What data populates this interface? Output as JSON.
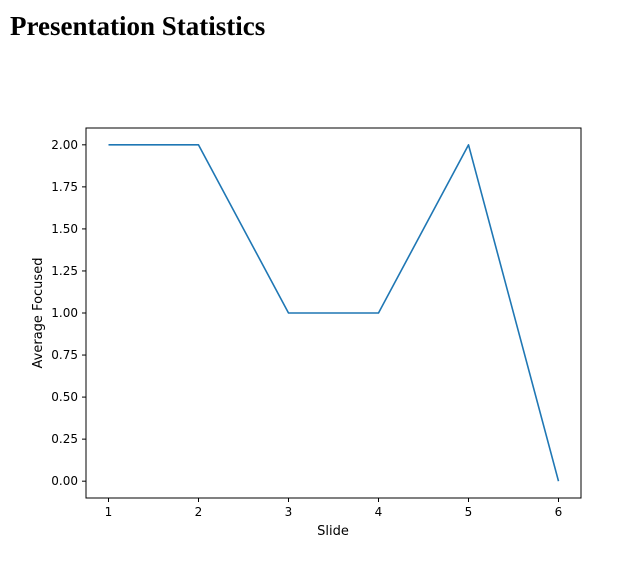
{
  "page": {
    "title": "Presentation Statistics"
  },
  "chart_data": {
    "type": "line",
    "title": "",
    "xlabel": "Slide",
    "ylabel": "Average Focused",
    "x": [
      1,
      2,
      3,
      4,
      5,
      6
    ],
    "series": [
      {
        "name": "Average Focused",
        "values": [
          2,
          2,
          1,
          1,
          2,
          0
        ]
      }
    ],
    "xlim": [
      0.75,
      6.25
    ],
    "ylim": [
      -0.1,
      2.1
    ],
    "xtick_values": [
      1,
      2,
      3,
      4,
      5,
      6
    ],
    "xtick_labels": [
      "1",
      "2",
      "3",
      "4",
      "5",
      "6"
    ],
    "ytick_values": [
      0,
      0.25,
      0.5,
      0.75,
      1,
      1.25,
      1.5,
      1.75,
      2
    ],
    "ytick_labels": [
      "0.00",
      "0.25",
      "0.50",
      "0.75",
      "1.00",
      "1.25",
      "1.50",
      "1.75",
      "2.00"
    ],
    "line_color": "#1f77b4",
    "spine_color": "#000000",
    "grid": false,
    "legend_position": "none"
  }
}
